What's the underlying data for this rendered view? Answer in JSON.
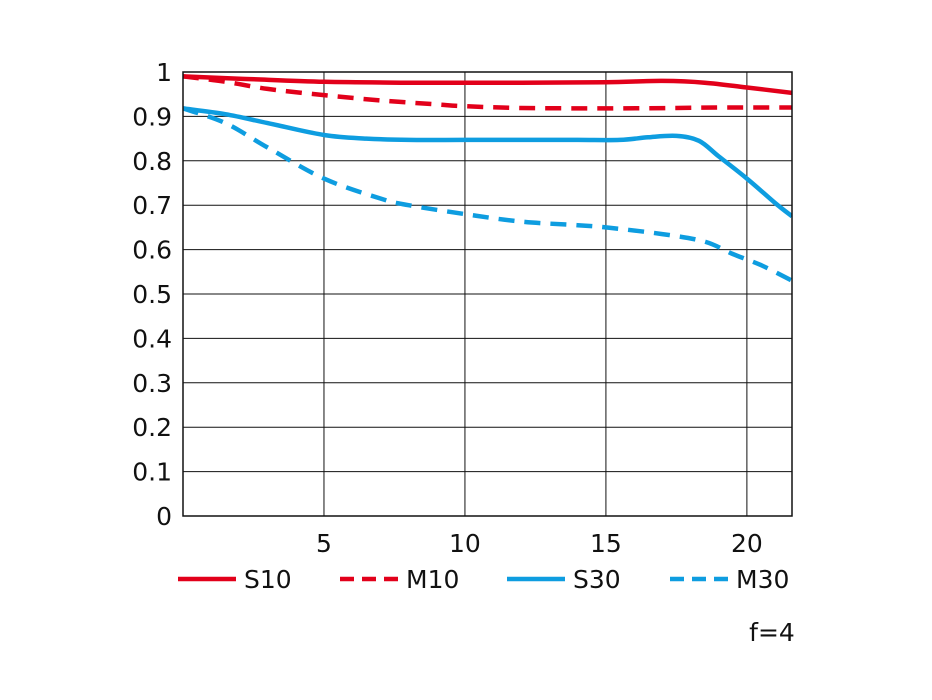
{
  "chart_data": {
    "type": "line",
    "x_range": [
      0,
      21.6
    ],
    "ylim": [
      0,
      1
    ],
    "x_ticks": [
      5,
      10,
      15,
      20
    ],
    "y_ticks": [
      0,
      0.1,
      0.2,
      0.3,
      0.4,
      0.5,
      0.6,
      0.7,
      0.8,
      0.9,
      1
    ],
    "y_tick_labels": [
      "0",
      "0.1",
      "0.2",
      "0.3",
      "0.4",
      "0.5",
      "0.6",
      "0.7",
      "0.8",
      "0.9",
      "1"
    ],
    "x_tick_labels": [
      "5",
      "10",
      "15",
      "20"
    ],
    "grid": true,
    "legend_position": "bottom",
    "note": "f=4",
    "series": [
      {
        "name": "S10",
        "color": "#e2001a",
        "dash": "solid",
        "points": [
          [
            0,
            0.99
          ],
          [
            2,
            0.985
          ],
          [
            5,
            0.978
          ],
          [
            8,
            0.976
          ],
          [
            10,
            0.976
          ],
          [
            12,
            0.976
          ],
          [
            15,
            0.977
          ],
          [
            17,
            0.98
          ],
          [
            18.5,
            0.976
          ],
          [
            20,
            0.965
          ],
          [
            21.6,
            0.953
          ]
        ]
      },
      {
        "name": "M10",
        "color": "#e2001a",
        "dash": "dashed",
        "points": [
          [
            0,
            0.99
          ],
          [
            1.5,
            0.978
          ],
          [
            3,
            0.962
          ],
          [
            5,
            0.948
          ],
          [
            7,
            0.936
          ],
          [
            9,
            0.927
          ],
          [
            10,
            0.923
          ],
          [
            12,
            0.919
          ],
          [
            15,
            0.918
          ],
          [
            17.5,
            0.919
          ],
          [
            19,
            0.92
          ],
          [
            21.6,
            0.92
          ]
        ]
      },
      {
        "name": "S30",
        "color": "#0e9de0",
        "dash": "solid",
        "points": [
          [
            0,
            0.918
          ],
          [
            1.5,
            0.905
          ],
          [
            3,
            0.885
          ],
          [
            5,
            0.858
          ],
          [
            6.5,
            0.85
          ],
          [
            8,
            0.847
          ],
          [
            10,
            0.847
          ],
          [
            12,
            0.847
          ],
          [
            14,
            0.847
          ],
          [
            15.5,
            0.847
          ],
          [
            16.5,
            0.853
          ],
          [
            17.5,
            0.856
          ],
          [
            18.3,
            0.845
          ],
          [
            19,
            0.81
          ],
          [
            20,
            0.76
          ],
          [
            21,
            0.705
          ],
          [
            21.6,
            0.675
          ]
        ]
      },
      {
        "name": "M30",
        "color": "#0e9de0",
        "dash": "dashed",
        "points": [
          [
            0,
            0.918
          ],
          [
            1.5,
            0.885
          ],
          [
            3,
            0.83
          ],
          [
            5,
            0.76
          ],
          [
            7,
            0.715
          ],
          [
            8,
            0.7
          ],
          [
            10,
            0.68
          ],
          [
            12,
            0.663
          ],
          [
            14,
            0.655
          ],
          [
            15,
            0.65
          ],
          [
            17,
            0.635
          ],
          [
            18.5,
            0.618
          ],
          [
            19.5,
            0.59
          ],
          [
            20.5,
            0.565
          ],
          [
            21.6,
            0.53
          ]
        ]
      }
    ]
  }
}
